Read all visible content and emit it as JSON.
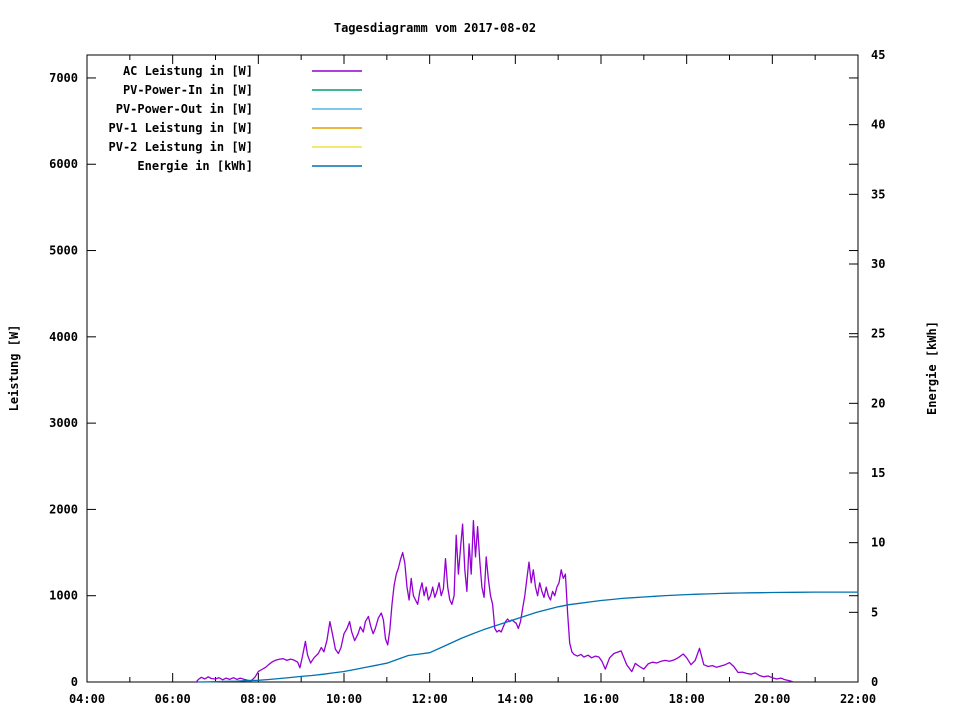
{
  "title": "Tagesdiagramm vom 2017-08-02",
  "y1_label": "Leistung [W]",
  "y2_label": "Energie [kWh]",
  "colors": {
    "background": "#ffffff",
    "axis": "#000000",
    "ac": "#9400d3",
    "pv_power_in": "#009e73",
    "pv_power_out": "#56b4e9",
    "pv1": "#e69f00",
    "pv2": "#f0e442",
    "energie": "#0072b2"
  },
  "chart_data": {
    "type": "line",
    "title": "Tagesdiagramm vom 2017-08-02",
    "grid": false,
    "legend_position": "top-left-inside",
    "x_axis": {
      "label": "",
      "min": 4,
      "max": 22,
      "ticks": [
        {
          "value": 4,
          "label": "04:00"
        },
        {
          "value": 6,
          "label": "06:00"
        },
        {
          "value": 8,
          "label": "08:00"
        },
        {
          "value": 10,
          "label": "10:00"
        },
        {
          "value": 12,
          "label": "12:00"
        },
        {
          "value": 14,
          "label": "14:00"
        },
        {
          "value": 16,
          "label": "16:00"
        },
        {
          "value": 18,
          "label": "18:00"
        },
        {
          "value": 20,
          "label": "20:00"
        },
        {
          "value": 22,
          "label": "22:00"
        }
      ],
      "minor_ticks": [
        5,
        7,
        9,
        11,
        13,
        15,
        17,
        19,
        21
      ]
    },
    "y1_axis": {
      "label": "Leistung [W]",
      "min": 0,
      "scale_max": 7266,
      "ticks": [
        {
          "value": 0,
          "label": "0"
        },
        {
          "value": 1000,
          "label": "1000"
        },
        {
          "value": 2000,
          "label": "2000"
        },
        {
          "value": 3000,
          "label": "3000"
        },
        {
          "value": 4000,
          "label": "4000"
        },
        {
          "value": 5000,
          "label": "5000"
        },
        {
          "value": 6000,
          "label": "6000"
        },
        {
          "value": 7000,
          "label": "7000"
        }
      ]
    },
    "y2_axis": {
      "label": "Energie [kWh]",
      "min": 0,
      "scale_max": 45,
      "ticks": [
        {
          "value": 0,
          "label": "0"
        },
        {
          "value": 5,
          "label": "5"
        },
        {
          "value": 10,
          "label": "10"
        },
        {
          "value": 15,
          "label": "15"
        },
        {
          "value": 20,
          "label": "20"
        },
        {
          "value": 25,
          "label": "25"
        },
        {
          "value": 30,
          "label": "30"
        },
        {
          "value": 35,
          "label": "35"
        },
        {
          "value": 40,
          "label": "40"
        },
        {
          "value": 45,
          "label": "45"
        }
      ]
    },
    "legend": [
      {
        "label": "AC Leistung in [W]",
        "color": "#9400d3"
      },
      {
        "label": "PV-Power-In in [W]",
        "color": "#009e73"
      },
      {
        "label": "PV-Power-Out in [W]",
        "color": "#56b4e9"
      },
      {
        "label": "PV-1 Leistung in [W]",
        "color": "#e69f00"
      },
      {
        "label": "PV-2 Leistung in [W]",
        "color": "#f0e442"
      },
      {
        "label": "Energie in [kWh]",
        "color": "#0072b2"
      }
    ],
    "series": [
      {
        "name": "AC Leistung in [W]",
        "color": "#9400d3",
        "axis": "y1",
        "unit": "W",
        "points": [
          [
            6.55,
            0
          ],
          [
            6.6,
            30
          ],
          [
            6.67,
            55
          ],
          [
            6.75,
            35
          ],
          [
            6.83,
            60
          ],
          [
            6.9,
            40
          ],
          [
            7.0,
            35
          ],
          [
            7.08,
            50
          ],
          [
            7.17,
            25
          ],
          [
            7.25,
            45
          ],
          [
            7.33,
            30
          ],
          [
            7.42,
            50
          ],
          [
            7.5,
            30
          ],
          [
            7.58,
            45
          ],
          [
            7.67,
            30
          ],
          [
            7.75,
            20
          ],
          [
            7.83,
            15
          ],
          [
            7.92,
            55
          ],
          [
            8.0,
            120
          ],
          [
            8.08,
            145
          ],
          [
            8.17,
            170
          ],
          [
            8.25,
            205
          ],
          [
            8.33,
            235
          ],
          [
            8.42,
            255
          ],
          [
            8.5,
            265
          ],
          [
            8.58,
            270
          ],
          [
            8.67,
            250
          ],
          [
            8.75,
            265
          ],
          [
            8.83,
            255
          ],
          [
            8.92,
            230
          ],
          [
            8.97,
            165
          ],
          [
            9.03,
            300
          ],
          [
            9.1,
            470
          ],
          [
            9.15,
            310
          ],
          [
            9.22,
            220
          ],
          [
            9.3,
            280
          ],
          [
            9.4,
            330
          ],
          [
            9.47,
            400
          ],
          [
            9.53,
            350
          ],
          [
            9.6,
            480
          ],
          [
            9.67,
            700
          ],
          [
            9.73,
            560
          ],
          [
            9.8,
            380
          ],
          [
            9.87,
            330
          ],
          [
            9.93,
            400
          ],
          [
            10.0,
            560
          ],
          [
            10.07,
            620
          ],
          [
            10.13,
            700
          ],
          [
            10.18,
            580
          ],
          [
            10.25,
            480
          ],
          [
            10.33,
            560
          ],
          [
            10.38,
            640
          ],
          [
            10.45,
            580
          ],
          [
            10.5,
            700
          ],
          [
            10.57,
            760
          ],
          [
            10.62,
            650
          ],
          [
            10.68,
            560
          ],
          [
            10.73,
            620
          ],
          [
            10.8,
            740
          ],
          [
            10.87,
            800
          ],
          [
            10.92,
            720
          ],
          [
            10.97,
            500
          ],
          [
            11.02,
            430
          ],
          [
            11.07,
            600
          ],
          [
            11.12,
            900
          ],
          [
            11.17,
            1120
          ],
          [
            11.22,
            1250
          ],
          [
            11.27,
            1320
          ],
          [
            11.32,
            1420
          ],
          [
            11.37,
            1500
          ],
          [
            11.42,
            1380
          ],
          [
            11.47,
            1100
          ],
          [
            11.52,
            950
          ],
          [
            11.57,
            1200
          ],
          [
            11.62,
            1000
          ],
          [
            11.67,
            950
          ],
          [
            11.72,
            900
          ],
          [
            11.77,
            1050
          ],
          [
            11.82,
            1150
          ],
          [
            11.87,
            1000
          ],
          [
            11.92,
            1100
          ],
          [
            11.97,
            950
          ],
          [
            12.02,
            1000
          ],
          [
            12.07,
            1100
          ],
          [
            12.12,
            980
          ],
          [
            12.17,
            1050
          ],
          [
            12.22,
            1150
          ],
          [
            12.27,
            1000
          ],
          [
            12.32,
            1080
          ],
          [
            12.37,
            1430
          ],
          [
            12.42,
            1100
          ],
          [
            12.47,
            950
          ],
          [
            12.52,
            900
          ],
          [
            12.57,
            1000
          ],
          [
            12.62,
            1700
          ],
          [
            12.67,
            1250
          ],
          [
            12.72,
            1550
          ],
          [
            12.77,
            1830
          ],
          [
            12.82,
            1300
          ],
          [
            12.87,
            1050
          ],
          [
            12.92,
            1600
          ],
          [
            12.97,
            1250
          ],
          [
            13.02,
            1870
          ],
          [
            13.07,
            1450
          ],
          [
            13.12,
            1800
          ],
          [
            13.17,
            1400
          ],
          [
            13.22,
            1100
          ],
          [
            13.27,
            980
          ],
          [
            13.32,
            1450
          ],
          [
            13.37,
            1200
          ],
          [
            13.42,
            1000
          ],
          [
            13.47,
            900
          ],
          [
            13.52,
            620
          ],
          [
            13.57,
            580
          ],
          [
            13.62,
            600
          ],
          [
            13.67,
            580
          ],
          [
            13.72,
            640
          ],
          [
            13.77,
            700
          ],
          [
            13.82,
            730
          ],
          [
            13.87,
            700
          ],
          [
            13.92,
            720
          ],
          [
            13.97,
            700
          ],
          [
            14.02,
            680
          ],
          [
            14.07,
            620
          ],
          [
            14.12,
            700
          ],
          [
            14.17,
            850
          ],
          [
            14.22,
            1000
          ],
          [
            14.27,
            1200
          ],
          [
            14.32,
            1390
          ],
          [
            14.37,
            1150
          ],
          [
            14.42,
            1300
          ],
          [
            14.47,
            1100
          ],
          [
            14.52,
            1000
          ],
          [
            14.57,
            1150
          ],
          [
            14.62,
            1050
          ],
          [
            14.67,
            980
          ],
          [
            14.72,
            1100
          ],
          [
            14.77,
            1000
          ],
          [
            14.82,
            950
          ],
          [
            14.87,
            1050
          ],
          [
            14.92,
            1000
          ],
          [
            14.97,
            1100
          ],
          [
            15.02,
            1150
          ],
          [
            15.07,
            1300
          ],
          [
            15.12,
            1200
          ],
          [
            15.17,
            1250
          ],
          [
            15.22,
            800
          ],
          [
            15.27,
            450
          ],
          [
            15.32,
            350
          ],
          [
            15.37,
            320
          ],
          [
            15.45,
            300
          ],
          [
            15.53,
            320
          ],
          [
            15.6,
            290
          ],
          [
            15.7,
            310
          ],
          [
            15.78,
            280
          ],
          [
            15.87,
            300
          ],
          [
            15.95,
            290
          ],
          [
            16.02,
            240
          ],
          [
            16.1,
            150
          ],
          [
            16.2,
            280
          ],
          [
            16.3,
            330
          ],
          [
            16.47,
            360
          ],
          [
            16.6,
            200
          ],
          [
            16.72,
            120
          ],
          [
            16.8,
            215
          ],
          [
            16.9,
            180
          ],
          [
            17.0,
            150
          ],
          [
            17.1,
            210
          ],
          [
            17.2,
            230
          ],
          [
            17.3,
            220
          ],
          [
            17.4,
            240
          ],
          [
            17.5,
            250
          ],
          [
            17.6,
            240
          ],
          [
            17.7,
            255
          ],
          [
            17.8,
            280
          ],
          [
            17.92,
            325
          ],
          [
            18.0,
            280
          ],
          [
            18.1,
            200
          ],
          [
            18.2,
            250
          ],
          [
            18.3,
            390
          ],
          [
            18.4,
            200
          ],
          [
            18.5,
            180
          ],
          [
            18.6,
            190
          ],
          [
            18.7,
            170
          ],
          [
            18.8,
            185
          ],
          [
            18.9,
            200
          ],
          [
            19.0,
            225
          ],
          [
            19.1,
            180
          ],
          [
            19.2,
            110
          ],
          [
            19.3,
            115
          ],
          [
            19.4,
            100
          ],
          [
            19.5,
            90
          ],
          [
            19.6,
            105
          ],
          [
            19.7,
            75
          ],
          [
            19.8,
            60
          ],
          [
            19.9,
            70
          ],
          [
            20.0,
            50
          ],
          [
            20.1,
            35
          ],
          [
            20.2,
            45
          ],
          [
            20.3,
            25
          ],
          [
            20.4,
            15
          ],
          [
            20.47,
            5
          ]
        ]
      },
      {
        "name": "PV-Power-In in [W]",
        "color": "#009e73",
        "axis": "y1",
        "unit": "W",
        "points": []
      },
      {
        "name": "PV-Power-Out in [W]",
        "color": "#56b4e9",
        "axis": "y1",
        "unit": "W",
        "points": []
      },
      {
        "name": "PV-1 Leistung in [W]",
        "color": "#e69f00",
        "axis": "y1",
        "unit": "W",
        "points": []
      },
      {
        "name": "PV-2 Leistung in [W]",
        "color": "#f0e442",
        "axis": "y1",
        "unit": "W",
        "points": []
      },
      {
        "name": "Energie in [kWh]",
        "color": "#0072b2",
        "axis": "y2",
        "unit": "kWh",
        "points": [
          [
            6.6,
            0
          ],
          [
            6.8,
            0.01
          ],
          [
            7.0,
            0.02
          ],
          [
            7.2,
            0.04
          ],
          [
            7.5,
            0.06
          ],
          [
            7.7,
            0.09
          ],
          [
            8.0,
            0.12
          ],
          [
            8.25,
            0.18
          ],
          [
            8.5,
            0.25
          ],
          [
            8.75,
            0.32
          ],
          [
            9.0,
            0.4
          ],
          [
            9.25,
            0.47
          ],
          [
            9.5,
            0.55
          ],
          [
            9.75,
            0.65
          ],
          [
            10.0,
            0.75
          ],
          [
            10.25,
            0.9
          ],
          [
            10.5,
            1.05
          ],
          [
            10.75,
            1.2
          ],
          [
            11.0,
            1.35
          ],
          [
            11.25,
            1.62
          ],
          [
            11.5,
            1.9
          ],
          [
            11.75,
            2.0
          ],
          [
            12.0,
            2.1
          ],
          [
            12.25,
            2.45
          ],
          [
            12.5,
            2.8
          ],
          [
            12.75,
            3.15
          ],
          [
            13.0,
            3.45
          ],
          [
            13.25,
            3.75
          ],
          [
            13.5,
            4.0
          ],
          [
            13.75,
            4.25
          ],
          [
            14.0,
            4.5
          ],
          [
            14.25,
            4.75
          ],
          [
            14.5,
            5.0
          ],
          [
            14.75,
            5.2
          ],
          [
            15.0,
            5.4
          ],
          [
            15.25,
            5.55
          ],
          [
            15.5,
            5.65
          ],
          [
            15.75,
            5.75
          ],
          [
            16.0,
            5.85
          ],
          [
            16.25,
            5.92
          ],
          [
            16.5,
            6.0
          ],
          [
            16.75,
            6.05
          ],
          [
            17.0,
            6.1
          ],
          [
            17.25,
            6.15
          ],
          [
            17.5,
            6.2
          ],
          [
            17.75,
            6.24
          ],
          [
            18.0,
            6.27
          ],
          [
            18.25,
            6.3
          ],
          [
            18.5,
            6.32
          ],
          [
            18.75,
            6.35
          ],
          [
            19.0,
            6.37
          ],
          [
            19.25,
            6.39
          ],
          [
            19.5,
            6.4
          ],
          [
            19.75,
            6.41
          ],
          [
            20.0,
            6.42
          ],
          [
            20.25,
            6.43
          ],
          [
            20.5,
            6.44
          ],
          [
            21.0,
            6.45
          ],
          [
            21.5,
            6.45
          ],
          [
            22.0,
            6.45
          ]
        ]
      }
    ]
  }
}
